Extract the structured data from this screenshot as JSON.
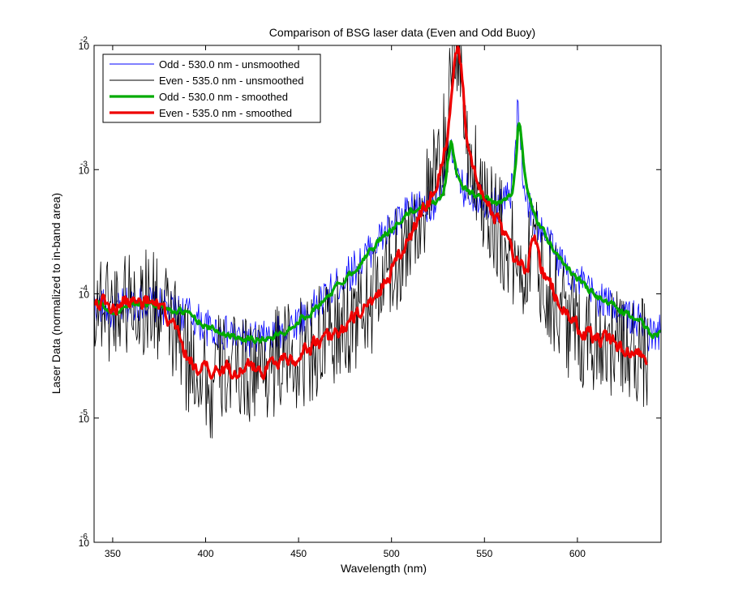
{
  "chart_data": {
    "type": "line",
    "title": "Comparison of BSG laser data (Even and Odd Buoy)",
    "xlabel": "Wavelength (nm)",
    "ylabel": "Laser Data (normalized to in-band area)",
    "xlim": [
      340,
      645
    ],
    "ylim": [
      1e-06,
      0.01
    ],
    "yscale": "log",
    "grid": false,
    "legend": "top-left",
    "xticks": [
      350,
      400,
      450,
      500,
      550,
      600
    ],
    "yticks": [
      {
        "value": 1e-06,
        "mantissa": "10",
        "exponent": "-6"
      },
      {
        "value": 1e-05,
        "mantissa": "10",
        "exponent": "-5"
      },
      {
        "value": 0.0001,
        "mantissa": "10",
        "exponent": "-4"
      },
      {
        "value": 0.001,
        "mantissa": "10",
        "exponent": "-3"
      },
      {
        "value": 0.01,
        "mantissa": "10",
        "exponent": "-2"
      }
    ],
    "series": [
      {
        "name": "Odd - 530.0 nm - unsmoothed",
        "color": "#0000ff",
        "lineStyle": "thin",
        "noise": 0.15,
        "x": [
          340,
          345,
          350,
          355,
          360,
          365,
          370,
          375,
          380,
          385,
          390,
          395,
          400,
          405,
          410,
          415,
          420,
          425,
          430,
          435,
          440,
          445,
          450,
          455,
          460,
          465,
          470,
          475,
          480,
          485,
          490,
          495,
          500,
          505,
          510,
          515,
          520,
          525,
          528,
          530,
          532,
          534,
          536,
          540,
          545,
          550,
          555,
          560,
          565,
          567,
          568,
          569,
          571,
          575,
          580,
          585,
          590,
          595,
          600,
          605,
          610,
          615,
          620,
          625,
          630,
          635,
          640,
          645
        ],
        "y": [
          8.5e-05,
          7.8e-05,
          6.8e-05,
          7.8e-05,
          8.3e-05,
          8.6e-05,
          8.5e-05,
          8e-05,
          7.5e-05,
          7.2e-05,
          7e-05,
          6.2e-05,
          5.4e-05,
          5e-05,
          4.8e-05,
          4.6e-05,
          4.4e-05,
          4.3e-05,
          4.3e-05,
          4.4e-05,
          4.8e-05,
          5.4e-05,
          6.2e-05,
          7e-05,
          8e-05,
          9.5e-05,
          0.000115,
          0.000135,
          0.00016,
          0.000195,
          0.00024,
          0.00029,
          0.00034,
          0.0004,
          0.00046,
          0.0005,
          0.00053,
          0.00058,
          0.0007,
          0.0013,
          0.002,
          0.0009,
          0.00075,
          0.00068,
          0.00062,
          0.00058,
          0.00052,
          0.00055,
          0.00068,
          0.0016,
          0.0035,
          0.0025,
          0.0008,
          0.00045,
          0.00033,
          0.00025,
          0.00019,
          0.000155,
          0.00013,
          0.00011,
          9.5e-05,
          8.5e-05,
          7.8e-05,
          7e-05,
          6.3e-05,
          5.6e-05,
          4.5e-05,
          5e-05
        ]
      },
      {
        "name": "Even - 535.0 nm - unsmoothed",
        "color": "#000000",
        "lineStyle": "thin",
        "noise": 0.45,
        "x": [
          340,
          345,
          350,
          355,
          360,
          365,
          370,
          375,
          380,
          385,
          390,
          395,
          400,
          403,
          405,
          410,
          415,
          420,
          425,
          430,
          435,
          440,
          445,
          450,
          455,
          460,
          465,
          470,
          475,
          480,
          485,
          490,
          495,
          500,
          505,
          510,
          515,
          520,
          525,
          530,
          533,
          534,
          536,
          537,
          540,
          545,
          550,
          555,
          560,
          565,
          570,
          573,
          575,
          577,
          580,
          585,
          590,
          595,
          600,
          605,
          610,
          615,
          620,
          625,
          630,
          635,
          638
        ],
        "y": [
          9e-05,
          8.6e-05,
          7.5e-05,
          8.6e-05,
          8.8e-05,
          8.6e-05,
          8.6e-05,
          7.5e-05,
          6e-05,
          4.5e-05,
          2.9e-05,
          2.6e-05,
          2.4e-05,
          1.2e-05,
          2.4e-05,
          2.5e-05,
          2.4e-05,
          2.6e-05,
          2.5e-05,
          2.5e-05,
          2.8e-05,
          3e-05,
          3.1e-05,
          3.2e-05,
          3.6e-05,
          4e-05,
          4.4e-05,
          4.8e-05,
          5.5e-05,
          6.5e-05,
          7.5e-05,
          9e-05,
          0.00012,
          0.00016,
          0.00022,
          0.0003,
          0.00042,
          0.0006,
          0.0009,
          0.002,
          0.008,
          0.01,
          0.01,
          0.006,
          0.0018,
          0.0009,
          0.0006,
          0.00042,
          0.00028,
          0.0002,
          0.00016,
          0.00016,
          0.00036,
          0.00025,
          0.00015,
          0.000115,
          8e-05,
          6e-05,
          5.2e-05,
          4.7e-05,
          4.4e-05,
          4.4e-05,
          3.9e-05,
          3.5e-05,
          3.6e-05,
          3.5e-05,
          2.6e-05
        ]
      },
      {
        "name": "Odd - 530.0 nm - smoothed",
        "color": "#00aa00",
        "lineStyle": "thick",
        "noise": 0.05,
        "x": [
          340,
          345,
          350,
          355,
          360,
          365,
          370,
          375,
          380,
          385,
          390,
          395,
          400,
          405,
          410,
          415,
          420,
          425,
          430,
          435,
          440,
          445,
          450,
          455,
          460,
          465,
          470,
          475,
          480,
          485,
          490,
          495,
          500,
          505,
          510,
          515,
          520,
          525,
          528,
          530,
          532,
          534,
          536,
          540,
          545,
          550,
          555,
          560,
          565,
          567,
          568,
          569,
          571,
          575,
          580,
          585,
          590,
          595,
          600,
          605,
          610,
          615,
          620,
          625,
          630,
          635,
          640,
          645
        ],
        "y": [
          8.5e-05,
          7.8e-05,
          6.8e-05,
          7.8e-05,
          8.3e-05,
          8.6e-05,
          8.5e-05,
          8e-05,
          7.5e-05,
          7.2e-05,
          7e-05,
          6.2e-05,
          5.4e-05,
          5e-05,
          4.8e-05,
          4.6e-05,
          4.4e-05,
          4.3e-05,
          4.3e-05,
          4.4e-05,
          4.8e-05,
          5.4e-05,
          6.2e-05,
          7e-05,
          8e-05,
          9.5e-05,
          0.000115,
          0.000135,
          0.00016,
          0.000195,
          0.00024,
          0.00029,
          0.00034,
          0.0004,
          0.00046,
          0.0005,
          0.00053,
          0.00058,
          0.0007,
          0.0013,
          0.002,
          0.0009,
          0.00075,
          0.00068,
          0.00062,
          0.00058,
          0.00052,
          0.00055,
          0.00068,
          0.0016,
          0.0035,
          0.0025,
          0.0008,
          0.00045,
          0.00033,
          0.00025,
          0.00019,
          0.000155,
          0.00013,
          0.00011,
          9.5e-05,
          8.5e-05,
          7.8e-05,
          7e-05,
          6.3e-05,
          5.6e-05,
          4.5e-05,
          5e-05
        ]
      },
      {
        "name": "Even - 535.0 nm - smoothed",
        "color": "#ee0000",
        "lineStyle": "thick",
        "noise": 0.12,
        "x": [
          340,
          345,
          350,
          355,
          360,
          365,
          370,
          375,
          380,
          385,
          390,
          395,
          400,
          403,
          405,
          410,
          415,
          420,
          425,
          430,
          435,
          440,
          445,
          450,
          455,
          460,
          465,
          470,
          475,
          480,
          485,
          490,
          495,
          500,
          505,
          510,
          515,
          520,
          525,
          530,
          533,
          534,
          536,
          537,
          540,
          545,
          550,
          555,
          560,
          565,
          570,
          573,
          575,
          577,
          580,
          585,
          590,
          595,
          600,
          605,
          610,
          615,
          620,
          625,
          630,
          635,
          638
        ],
        "y": [
          9e-05,
          8.6e-05,
          7.5e-05,
          8.6e-05,
          8.8e-05,
          8.6e-05,
          8.6e-05,
          7.5e-05,
          6e-05,
          4.5e-05,
          2.9e-05,
          2.6e-05,
          2.4e-05,
          2.2e-05,
          2.4e-05,
          2.5e-05,
          2.4e-05,
          2.6e-05,
          2.5e-05,
          2.5e-05,
          2.8e-05,
          3e-05,
          3.1e-05,
          3.2e-05,
          3.6e-05,
          4e-05,
          4.4e-05,
          4.8e-05,
          5.5e-05,
          6.5e-05,
          7.5e-05,
          9e-05,
          0.00012,
          0.00016,
          0.00022,
          0.0003,
          0.00042,
          0.0006,
          0.0009,
          0.002,
          0.008,
          0.01,
          0.01,
          0.006,
          0.0018,
          0.0009,
          0.0006,
          0.00042,
          0.00028,
          0.0002,
          0.00016,
          0.00016,
          0.00036,
          0.00025,
          0.00015,
          0.000115,
          8e-05,
          6e-05,
          5.2e-05,
          4.7e-05,
          4.4e-05,
          4.4e-05,
          3.9e-05,
          3.5e-05,
          3.6e-05,
          3.5e-05,
          2.6e-05
        ]
      }
    ]
  }
}
